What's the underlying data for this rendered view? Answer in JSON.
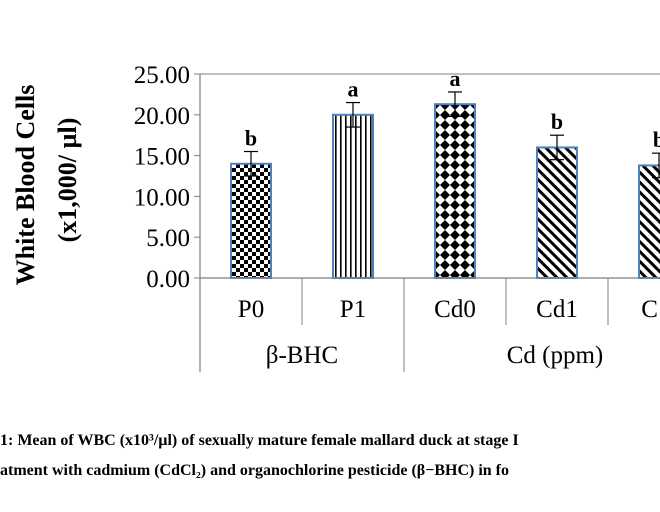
{
  "chart_data": {
    "type": "bar",
    "ylabel_line1": "White Blood Cells",
    "ylabel_line2": "(x1,000/ µl)",
    "ylim": [
      0,
      25
    ],
    "yticks": [
      "0.00",
      "5.00",
      "10.00",
      "15.00",
      "20.00",
      "25.00"
    ],
    "grid": false,
    "categories": [
      "P0",
      "P1",
      "Cd0",
      "Cd1",
      "C d"
    ],
    "values": [
      14.0,
      20.0,
      21.3,
      16.0,
      13.8
    ],
    "errors": [
      1.5,
      1.5,
      1.5,
      1.5,
      1.5
    ],
    "significance": [
      "b",
      "a",
      "a",
      "b",
      "b"
    ],
    "patterns": [
      "checker",
      "vertical-lines",
      "diamonds",
      "diagonal-left",
      "diagonal-left"
    ],
    "groups": [
      {
        "label": "β-BHC",
        "start": 0,
        "end": 1
      },
      {
        "label": "Cd (ppm)",
        "start": 2,
        "end": 4
      }
    ],
    "colors": {
      "bar_edge": "#4f81bd",
      "axis": "#7f7f7f",
      "fill": "#000000"
    }
  },
  "caption": {
    "line1": "1:  Mean of WBC (x10³/µl) of sexually mature female mallard duck at stage I",
    "line2": "atment with cadmium (CdCl₂) and organochlorine pesticide (β−BHC) in fo"
  }
}
